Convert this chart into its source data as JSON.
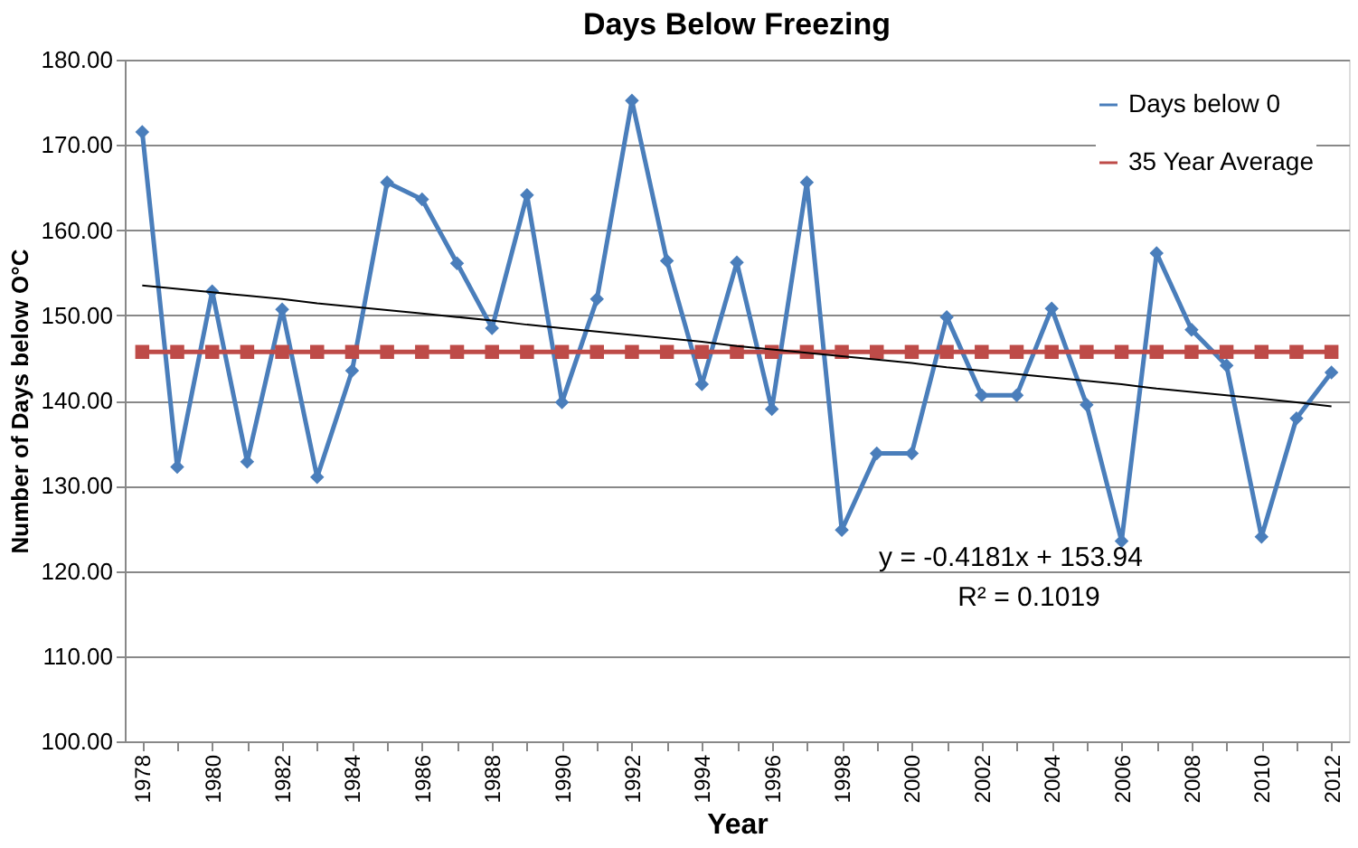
{
  "chart_data": {
    "type": "line",
    "title": "Days Below Freezing",
    "xlabel": "Year",
    "ylabel": "Number of Days below O°C",
    "categories": [
      "1978",
      null,
      "1980",
      null,
      "1982",
      null,
      "1984",
      null,
      "1986",
      null,
      "1988",
      null,
      "1990",
      null,
      "1992",
      null,
      "1994",
      null,
      "1996",
      null,
      "1998",
      null,
      "2000",
      null,
      "2002",
      null,
      "2004",
      null,
      "2006",
      null,
      "2008",
      null,
      "2010",
      null,
      "2012"
    ],
    "series": [
      {
        "name": "Days below 0",
        "color": "#4a7ebb",
        "marker": "diamond",
        "values": [
          171.5,
          132.2,
          152.8,
          132.8,
          150.7,
          131.0,
          143.5,
          165.6,
          163.6,
          156.1,
          148.5,
          164.1,
          139.8,
          151.9,
          175.2,
          156.4,
          141.9,
          156.2,
          139.0,
          165.6,
          124.8,
          133.8,
          133.8,
          149.8,
          140.6,
          140.6,
          150.8,
          139.5,
          123.5,
          157.3,
          148.3,
          144.1,
          124.0,
          137.9,
          143.3
        ]
      },
      {
        "name": "35 Year Average",
        "color": "#be4b48",
        "marker": "square",
        "values": [
          145.7,
          145.7,
          145.7,
          145.7,
          145.7,
          145.7,
          145.7,
          145.7,
          145.7,
          145.7,
          145.7,
          145.7,
          145.7,
          145.7,
          145.7,
          145.7,
          145.7,
          145.7,
          145.7,
          145.7,
          145.7,
          145.7,
          145.7,
          145.7,
          145.7,
          145.7,
          145.7,
          145.7,
          145.7,
          145.7,
          145.7,
          145.7,
          145.7,
          145.7,
          145.7
        ]
      },
      {
        "type": "line",
        "color": "#000000",
        "marker": "none",
        "values": [
          153.5,
          153.1,
          152.7,
          152.3,
          151.9,
          151.4,
          151.0,
          150.6,
          150.2,
          149.8,
          149.4,
          148.9,
          148.5,
          148.1,
          147.7,
          147.3,
          146.9,
          146.4,
          146.0,
          145.6,
          145.2,
          144.8,
          144.4,
          143.9,
          143.5,
          143.1,
          142.7,
          142.3,
          141.9,
          141.4,
          141.0,
          140.6,
          140.2,
          139.8,
          139.3
        ]
      }
    ],
    "ylim": [
      100,
      180
    ],
    "yticks": [
      {
        "value": 100,
        "label": "100.00"
      },
      {
        "value": 110,
        "label": "110.00"
      },
      {
        "value": 120,
        "label": "120.00"
      },
      {
        "value": 130,
        "label": "130.00"
      },
      {
        "value": 140,
        "label": "140.00"
      },
      {
        "value": 150,
        "label": "150.00"
      },
      {
        "value": 160,
        "label": "160.00"
      },
      {
        "value": 170,
        "label": "170.00"
      },
      {
        "value": 180,
        "label": "180.00"
      }
    ],
    "grid": "y",
    "legend": "top right",
    "annotations": [
      "y = -0.4181x + 153.94",
      "R² = 0.1019"
    ]
  }
}
